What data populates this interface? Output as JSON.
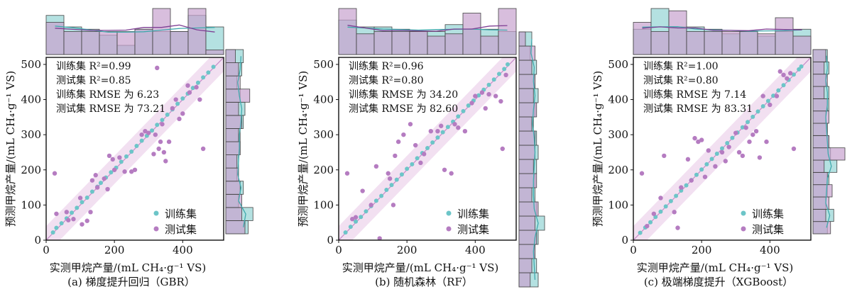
{
  "colors": {
    "train": "#6cc5c8",
    "test": "#b57cc1",
    "band": "#e7c6e6",
    "hist_train": "#a7dcdc",
    "hist_test": "#c7a3cf",
    "overlap": "#a49bc7"
  },
  "legend": {
    "train": "训练集",
    "test": "测试集"
  },
  "chart_data": [
    {
      "type": "scatter",
      "id": "gbr",
      "caption": "(a) 梯度提升回归（GBR）",
      "xlabel": "实测甲烷产量/(mL CH₄·g⁻¹ VS)",
      "ylabel": "预测甲烷产量/(mL CH₄·g⁻¹ VS)",
      "xlim": [
        0,
        520
      ],
      "ylim": [
        0,
        520
      ],
      "xticks": [
        0,
        200,
        400
      ],
      "yticks": [
        0,
        100,
        200,
        300,
        400,
        500
      ],
      "xtick_labels": [
        "0",
        "200",
        "400"
      ],
      "ytick_labels": [
        "0",
        "100",
        "200",
        "300",
        "400",
        "500"
      ],
      "metrics": [
        "训练集 R²=0.99",
        "测试集 R²=0.85",
        "训练集 RMSE 为 6.23",
        "测试集 RMSE 为 73.21"
      ],
      "train": [
        [
          20,
          22
        ],
        [
          30,
          35
        ],
        [
          45,
          48
        ],
        [
          60,
          62
        ],
        [
          75,
          78
        ],
        [
          90,
          92
        ],
        [
          105,
          108
        ],
        [
          120,
          121
        ],
        [
          135,
          138
        ],
        [
          150,
          152
        ],
        [
          160,
          163
        ],
        [
          175,
          178
        ],
        [
          190,
          193
        ],
        [
          205,
          206
        ],
        [
          220,
          223
        ],
        [
          235,
          238
        ],
        [
          250,
          252
        ],
        [
          265,
          268
        ],
        [
          280,
          283
        ],
        [
          295,
          297
        ],
        [
          310,
          312
        ],
        [
          325,
          328
        ],
        [
          340,
          342
        ],
        [
          355,
          357
        ],
        [
          370,
          372
        ],
        [
          385,
          388
        ],
        [
          400,
          403
        ],
        [
          415,
          417
        ],
        [
          430,
          433
        ],
        [
          445,
          448
        ],
        [
          460,
          463
        ],
        [
          475,
          477
        ],
        [
          490,
          493
        ]
      ],
      "test": [
        [
          25,
          190
        ],
        [
          30,
          75
        ],
        [
          60,
          80
        ],
        [
          65,
          57
        ],
        [
          80,
          60
        ],
        [
          100,
          120
        ],
        [
          105,
          45
        ],
        [
          120,
          55
        ],
        [
          130,
          80
        ],
        [
          135,
          170
        ],
        [
          145,
          185
        ],
        [
          150,
          150
        ],
        [
          170,
          175
        ],
        [
          180,
          145
        ],
        [
          185,
          240
        ],
        [
          195,
          230
        ],
        [
          200,
          200
        ],
        [
          215,
          235
        ],
        [
          230,
          195
        ],
        [
          250,
          195
        ],
        [
          260,
          200
        ],
        [
          280,
          300
        ],
        [
          290,
          310
        ],
        [
          300,
          305
        ],
        [
          315,
          245
        ],
        [
          320,
          300
        ],
        [
          325,
          490
        ],
        [
          330,
          260
        ],
        [
          335,
          280
        ],
        [
          340,
          330
        ],
        [
          345,
          250
        ],
        [
          350,
          225
        ],
        [
          360,
          280
        ],
        [
          370,
          375
        ],
        [
          380,
          400
        ],
        [
          390,
          345
        ],
        [
          400,
          360
        ],
        [
          415,
          440
        ],
        [
          420,
          420
        ],
        [
          440,
          435
        ],
        [
          450,
          400
        ],
        [
          460,
          260
        ]
      ],
      "top_hist": {
        "train": [
          0.85,
          0.6,
          0.55,
          0.42,
          0.2,
          0.55,
          0.5,
          0.5,
          0.85,
          0.6
        ],
        "test": [
          0.7,
          0.5,
          0.5,
          0.5,
          0.5,
          0.55,
          1.0,
          0.5,
          1.0,
          0.1
        ]
      },
      "right_hist": {
        "train": [
          0.7,
          0.85,
          0.4,
          0.55,
          0.35,
          0.4,
          0.45,
          0.45,
          0.55,
          0.6,
          0.45,
          0.35,
          0.5,
          0.55
        ],
        "test": [
          0.6,
          0.5,
          0.5,
          0.45,
          0.4,
          0.35,
          0.45,
          0.4,
          0.5,
          0.4,
          0.75,
          0.45,
          0.4,
          0.3
        ]
      }
    },
    {
      "type": "scatter",
      "id": "rf",
      "caption": "(b) 随机森林（RF）",
      "xlabel": "实测甲烷产量/(mL CH₄·g⁻¹ VS)",
      "ylabel": "预测甲烷产量/(mL CH₄·g⁻¹ VS)",
      "xlim": [
        0,
        520
      ],
      "ylim": [
        0,
        520
      ],
      "xticks": [
        0,
        200,
        400
      ],
      "yticks": [
        0,
        100,
        200,
        300,
        400,
        500
      ],
      "xtick_labels": [
        "0",
        "200",
        "400"
      ],
      "ytick_labels": [
        "0",
        "100",
        "200",
        "300",
        "400",
        "500"
      ],
      "metrics": [
        "训练集 R²=0.96",
        "测试集 R²=0.80",
        "训练集 RMSE 为 34.20",
        "测试集 RMSE 为 82.60"
      ],
      "train": [
        [
          20,
          22
        ],
        [
          35,
          38
        ],
        [
          50,
          53
        ],
        [
          65,
          66
        ],
        [
          80,
          82
        ],
        [
          95,
          97
        ],
        [
          110,
          112
        ],
        [
          125,
          126
        ],
        [
          140,
          143
        ],
        [
          155,
          157
        ],
        [
          170,
          172
        ],
        [
          185,
          187
        ],
        [
          200,
          203
        ],
        [
          215,
          216
        ],
        [
          230,
          233
        ],
        [
          245,
          248
        ],
        [
          260,
          262
        ],
        [
          275,
          278
        ],
        [
          290,
          292
        ],
        [
          305,
          307
        ],
        [
          320,
          322
        ],
        [
          335,
          337
        ],
        [
          350,
          352
        ],
        [
          365,
          367
        ],
        [
          380,
          383
        ],
        [
          395,
          397
        ],
        [
          410,
          412
        ],
        [
          425,
          428
        ],
        [
          440,
          442
        ],
        [
          455,
          457
        ],
        [
          470,
          473
        ],
        [
          485,
          487
        ],
        [
          495,
          500
        ]
      ],
      "test": [
        [
          25,
          190
        ],
        [
          40,
          60
        ],
        [
          50,
          65
        ],
        [
          70,
          140
        ],
        [
          95,
          100
        ],
        [
          110,
          210
        ],
        [
          120,
          5
        ],
        [
          145,
          190
        ],
        [
          150,
          175
        ],
        [
          160,
          100
        ],
        [
          165,
          240
        ],
        [
          175,
          280
        ],
        [
          190,
          300
        ],
        [
          210,
          330
        ],
        [
          225,
          270
        ],
        [
          240,
          220
        ],
        [
          250,
          245
        ],
        [
          270,
          310
        ],
        [
          290,
          310
        ],
        [
          300,
          325
        ],
        [
          310,
          200
        ],
        [
          330,
          190
        ],
        [
          340,
          330
        ],
        [
          350,
          320
        ],
        [
          370,
          310
        ],
        [
          390,
          390
        ],
        [
          400,
          410
        ],
        [
          420,
          420
        ],
        [
          430,
          375
        ],
        [
          440,
          415
        ],
        [
          460,
          410
        ],
        [
          475,
          395
        ],
        [
          480,
          260
        ],
        [
          490,
          470
        ]
      ],
      "top_hist": {
        "train": [
          0.75,
          0.6,
          0.6,
          0.55,
          0.5,
          0.5,
          0.65,
          0.55,
          0.55,
          0.5
        ],
        "test": [
          1.0,
          0.45,
          0.5,
          0.5,
          0.5,
          0.4,
          0.45,
          0.9,
          0.4,
          1.0
        ]
      },
      "right_hist": {
        "train": [
          0.6,
          0.55,
          0.5,
          0.6,
          0.8,
          0.55,
          0.5,
          0.5,
          0.55,
          0.6,
          0.55,
          0.45,
          0.5,
          0.6,
          0.5,
          0.55,
          0.35,
          0.4
        ],
        "test": [
          0.35,
          0.4,
          0.5,
          0.55,
          0.5,
          0.6,
          0.4,
          0.55,
          0.45,
          0.5,
          0.5,
          0.4,
          0.55,
          0.45,
          0.5,
          0.4,
          0.5,
          0.2
        ]
      }
    },
    {
      "type": "scatter",
      "id": "xgb",
      "caption": "(c) 极端梯度提升（XGBoost）",
      "xlabel": "实测甲烷产量/(mL CH₄·g⁻¹ VS)",
      "ylabel": "预测甲烷产量/(mL CH₄·g⁻¹ VS)",
      "xlim": [
        0,
        520
      ],
      "ylim": [
        0,
        520
      ],
      "xticks": [
        0,
        200,
        400
      ],
      "yticks": [
        0,
        100,
        200,
        300,
        400,
        500
      ],
      "xtick_labels": [
        "0",
        "200",
        "400"
      ],
      "ytick_labels": [
        "0",
        "100",
        "200",
        "300",
        "400",
        "500"
      ],
      "metrics": [
        "训练集 R²=1.00",
        "测试集 R²=0.80",
        "训练集 RMSE 为 7.14",
        "测试集 RMSE 为 83.31"
      ],
      "train": [
        [
          20,
          21
        ],
        [
          35,
          36
        ],
        [
          50,
          51
        ],
        [
          65,
          66
        ],
        [
          80,
          81
        ],
        [
          95,
          96
        ],
        [
          110,
          111
        ],
        [
          125,
          126
        ],
        [
          140,
          141
        ],
        [
          155,
          156
        ],
        [
          170,
          171
        ],
        [
          185,
          186
        ],
        [
          200,
          201
        ],
        [
          215,
          216
        ],
        [
          230,
          231
        ],
        [
          245,
          246
        ],
        [
          260,
          261
        ],
        [
          275,
          276
        ],
        [
          290,
          291
        ],
        [
          305,
          306
        ],
        [
          320,
          321
        ],
        [
          335,
          336
        ],
        [
          350,
          351
        ],
        [
          365,
          366
        ],
        [
          380,
          381
        ],
        [
          395,
          396
        ],
        [
          410,
          411
        ],
        [
          425,
          426
        ],
        [
          440,
          441
        ],
        [
          455,
          456
        ],
        [
          470,
          471
        ],
        [
          485,
          486
        ],
        [
          492,
          494
        ]
      ],
      "test": [
        [
          25,
          190
        ],
        [
          40,
          40
        ],
        [
          60,
          75
        ],
        [
          80,
          120
        ],
        [
          90,
          240
        ],
        [
          120,
          80
        ],
        [
          130,
          35
        ],
        [
          140,
          150
        ],
        [
          160,
          230
        ],
        [
          170,
          170
        ],
        [
          180,
          290
        ],
        [
          190,
          280
        ],
        [
          200,
          285
        ],
        [
          210,
          180
        ],
        [
          220,
          255
        ],
        [
          240,
          210
        ],
        [
          260,
          250
        ],
        [
          270,
          225
        ],
        [
          280,
          265
        ],
        [
          300,
          305
        ],
        [
          310,
          250
        ],
        [
          320,
          240
        ],
        [
          330,
          320
        ],
        [
          340,
          280
        ],
        [
          350,
          300
        ],
        [
          360,
          310
        ],
        [
          370,
          235
        ],
        [
          380,
          410
        ],
        [
          390,
          280
        ],
        [
          400,
          385
        ],
        [
          420,
          410
        ],
        [
          430,
          480
        ],
        [
          440,
          470
        ],
        [
          450,
          460
        ],
        [
          460,
          475
        ],
        [
          470,
          260
        ]
      ],
      "top_hist": {
        "train": [
          0.55,
          1.0,
          0.6,
          0.6,
          0.55,
          0.45,
          0.5,
          0.4,
          0.5,
          0.55
        ],
        "test": [
          0.7,
          0.5,
          0.95,
          0.5,
          0.5,
          0.5,
          0.5,
          0.45,
          0.8,
          0.4
        ]
      },
      "right_hist": {
        "train": [
          0.45,
          0.65,
          0.4,
          0.45,
          0.5,
          0.75,
          0.55,
          0.5,
          0.45,
          0.4,
          0.5,
          0.5,
          0.4,
          0.5,
          0.45
        ],
        "test": [
          0.55,
          0.4,
          0.5,
          0.6,
          0.45,
          0.35,
          1.0,
          0.5,
          0.45,
          0.5,
          0.45,
          0.35,
          0.45,
          0.35,
          0.4
        ]
      }
    }
  ]
}
